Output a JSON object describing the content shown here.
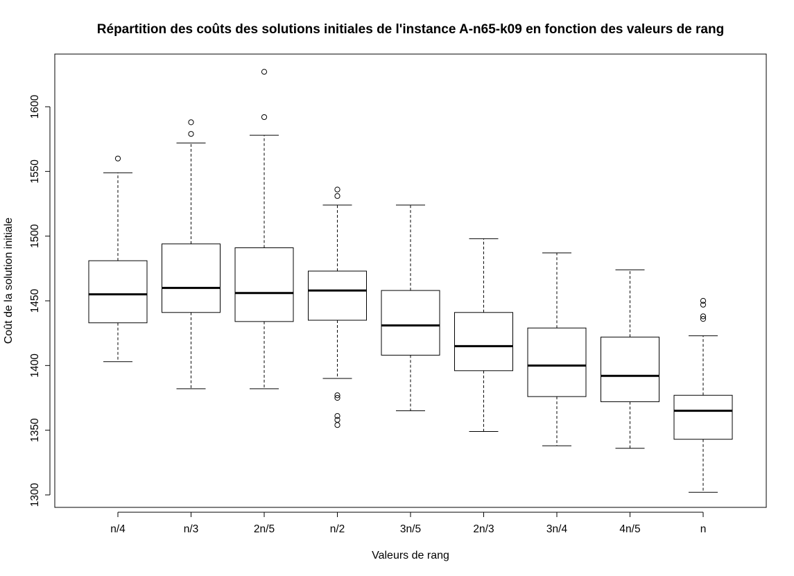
{
  "chart_data": {
    "type": "boxplot",
    "title": "Répartition des coûts des solutions initiales de l'instance A-n65-k09 en fonction des valeurs de rang",
    "xlabel": "Valeurs de rang",
    "ylabel": "Coût de la solution initiale",
    "ylim": [
      1290,
      1640
    ],
    "yticks": [
      1300,
      1350,
      1400,
      1450,
      1500,
      1550,
      1600
    ],
    "ytick_labels": [
      "1300",
      "1350",
      "1400",
      "1450",
      "1500",
      "1550",
      "1600"
    ],
    "grid": false,
    "categories": [
      "n/4",
      "n/3",
      "2n/5",
      "n/2",
      "3n/5",
      "2n/3",
      "3n/4",
      "4n/5",
      "n"
    ],
    "boxes": [
      {
        "category": "n/4",
        "whisker_low": 1403,
        "q1": 1433,
        "median": 1455,
        "q3": 1481,
        "whisker_high": 1549,
        "outliers": [
          1560
        ]
      },
      {
        "category": "n/3",
        "whisker_low": 1382,
        "q1": 1441,
        "median": 1460,
        "q3": 1494,
        "whisker_high": 1572,
        "outliers": [
          1579,
          1588
        ]
      },
      {
        "category": "2n/5",
        "whisker_low": 1382,
        "q1": 1434,
        "median": 1456,
        "q3": 1491,
        "whisker_high": 1578,
        "outliers": [
          1592,
          1627
        ]
      },
      {
        "category": "n/2",
        "whisker_low": 1390,
        "q1": 1435,
        "median": 1458,
        "q3": 1473,
        "whisker_high": 1524,
        "outliers": [
          1354,
          1358,
          1361,
          1375,
          1377,
          1531,
          1536
        ]
      },
      {
        "category": "3n/5",
        "whisker_low": 1365,
        "q1": 1408,
        "median": 1431,
        "q3": 1458,
        "whisker_high": 1524,
        "outliers": []
      },
      {
        "category": "2n/3",
        "whisker_low": 1349,
        "q1": 1396,
        "median": 1415,
        "q3": 1441,
        "whisker_high": 1498,
        "outliers": []
      },
      {
        "category": "3n/4",
        "whisker_low": 1338,
        "q1": 1376,
        "median": 1400,
        "q3": 1429,
        "whisker_high": 1487,
        "outliers": []
      },
      {
        "category": "4n/5",
        "whisker_low": 1336,
        "q1": 1372,
        "median": 1392,
        "q3": 1422,
        "whisker_high": 1474,
        "outliers": []
      },
      {
        "category": "n",
        "whisker_low": 1302,
        "q1": 1343,
        "median": 1365,
        "q3": 1377,
        "whisker_high": 1423,
        "outliers": [
          1436,
          1438,
          1447,
          1450
        ]
      }
    ]
  }
}
